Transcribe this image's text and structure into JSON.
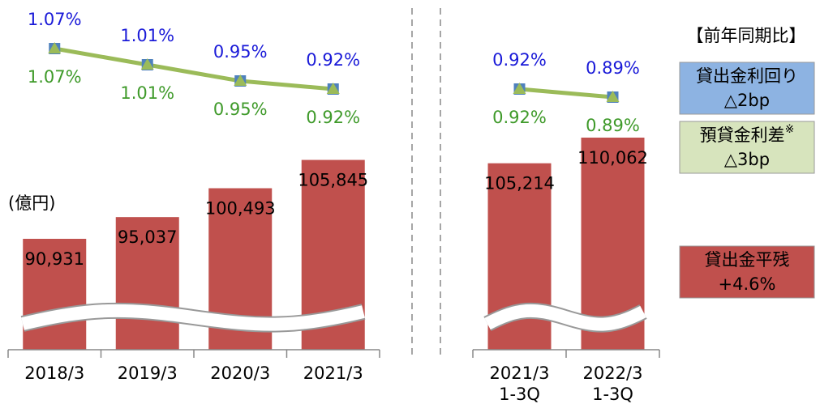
{
  "unit_label": "(億円)",
  "legend_title": "【前年同期比】",
  "legend": [
    {
      "label": "貸出金利回り",
      "change": "△2bp",
      "color": "#8db3e2"
    },
    {
      "label": "預貸金利差",
      "mark": "※",
      "change": "△3bp",
      "color": "#d7e4bd"
    },
    {
      "label": "貸出金平残",
      "change": "+4.6%",
      "color": "#c0504d"
    }
  ],
  "chart_data": [
    {
      "type": "bar_line",
      "categories": [
        "2018/3",
        "2019/3",
        "2020/3",
        "2021/3"
      ],
      "bars": {
        "color": "#c0504d",
        "values": [
          90931,
          95037,
          100493,
          105845
        ],
        "value_labels": [
          "90,931",
          "95,037",
          "100,493",
          "105,845"
        ]
      },
      "series": [
        {
          "color": "#4f81bd",
          "label_color": "#1a1ad8",
          "values": [
            1.07,
            1.01,
            0.95,
            0.92
          ],
          "value_labels": [
            "1.07%",
            "1.01%",
            "0.95%",
            "0.92%"
          ]
        },
        {
          "color": "#9bbb59",
          "label_color": "#3f9a2a",
          "values": [
            1.07,
            1.01,
            0.95,
            0.92
          ],
          "value_labels": [
            "1.07%",
            "1.01%",
            "0.95%",
            "0.92%"
          ]
        }
      ]
    },
    {
      "type": "bar_line",
      "categories": [
        [
          "2021/3",
          "1-3Q"
        ],
        [
          "2022/3",
          "1-3Q"
        ]
      ],
      "bars": {
        "color": "#c0504d",
        "values": [
          105214,
          110062
        ],
        "value_labels": [
          "105,214",
          "110,062"
        ]
      },
      "series": [
        {
          "color": "#4f81bd",
          "label_color": "#1a1ad8",
          "values": [
            0.92,
            0.89
          ],
          "value_labels": [
            "0.92%",
            "0.89%"
          ]
        },
        {
          "color": "#9bbb59",
          "label_color": "#3f9a2a",
          "values": [
            0.92,
            0.89
          ],
          "value_labels": [
            "0.92%",
            "0.89%"
          ]
        }
      ]
    }
  ]
}
